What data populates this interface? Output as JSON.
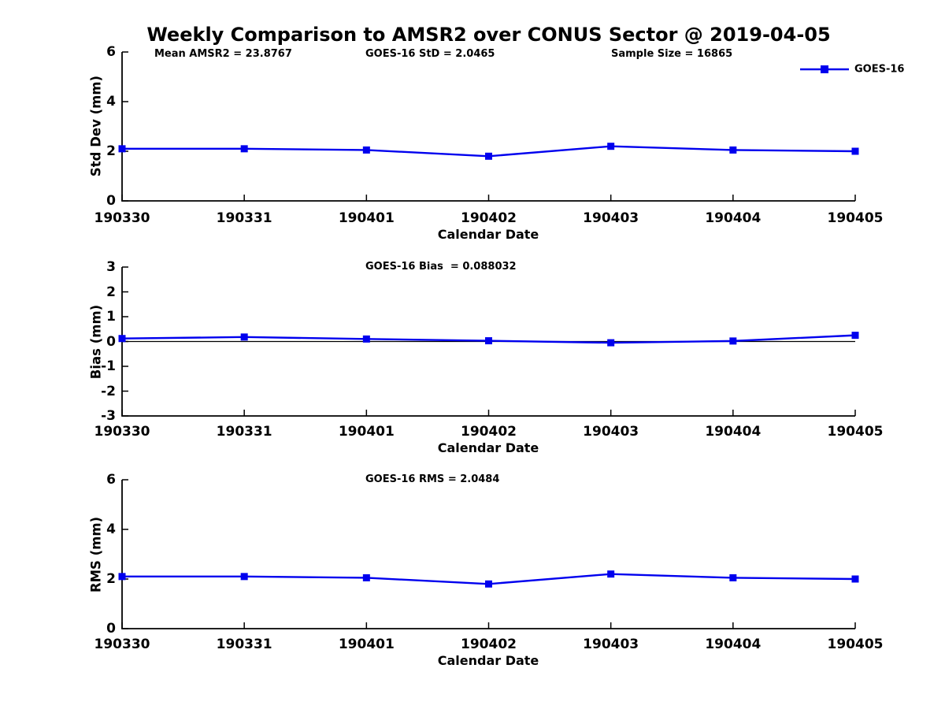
{
  "title": "Weekly Comparison to AMSR2 over CONUS Sector @ 2019-04-05",
  "annotations": {
    "mean_amsr2": "Mean AMSR2 = 23.8767",
    "goes16_std": "GOES-16 StD = 2.0465",
    "sample_size": "Sample Size = 16865",
    "goes16_bias": "GOES-16 Bias  = 0.088032",
    "goes16_rms": "GOES-16 RMS = 2.0484"
  },
  "legend": {
    "label": "GOES-16",
    "position": "top-right"
  },
  "colors": {
    "line": "#0000EE",
    "axis": "#000000",
    "zero_line": "#000000",
    "background": "#FFFFFF"
  },
  "chart_data": [
    {
      "type": "line",
      "panel": "std_dev",
      "categories": [
        "190330",
        "190331",
        "190401",
        "190402",
        "190403",
        "190404",
        "190405"
      ],
      "series": [
        {
          "name": "GOES-16",
          "values": [
            2.1,
            2.1,
            2.05,
            1.8,
            2.2,
            2.05,
            2.0
          ]
        }
      ],
      "xlabel": "Calendar Date",
      "ylabel": "Std Dev (mm)",
      "ylim": [
        0,
        6
      ],
      "yticks": [
        0,
        2,
        4,
        6
      ],
      "grid": false,
      "marker": "square",
      "zero_line": false,
      "legend_position": "top-right"
    },
    {
      "type": "line",
      "panel": "bias",
      "categories": [
        "190330",
        "190331",
        "190401",
        "190402",
        "190403",
        "190404",
        "190405"
      ],
      "series": [
        {
          "name": "GOES-16",
          "values": [
            0.12,
            0.18,
            0.1,
            0.03,
            -0.05,
            0.02,
            0.25
          ]
        }
      ],
      "xlabel": "Calendar Date",
      "ylabel": "Bias (mm)",
      "ylim": [
        -3,
        3
      ],
      "yticks": [
        -3,
        -2,
        -1,
        0,
        1,
        2,
        3
      ],
      "grid": false,
      "marker": "square",
      "zero_line": true,
      "legend_position": "none"
    },
    {
      "type": "line",
      "panel": "rms",
      "categories": [
        "190330",
        "190331",
        "190401",
        "190402",
        "190403",
        "190404",
        "190405"
      ],
      "series": [
        {
          "name": "GOES-16",
          "values": [
            2.1,
            2.1,
            2.05,
            1.8,
            2.2,
            2.05,
            2.0
          ]
        }
      ],
      "xlabel": "Calendar Date",
      "ylabel": "RMS (mm)",
      "ylim": [
        0,
        6
      ],
      "yticks": [
        0,
        2,
        4,
        6
      ],
      "grid": false,
      "marker": "square",
      "zero_line": false,
      "legend_position": "none"
    }
  ]
}
